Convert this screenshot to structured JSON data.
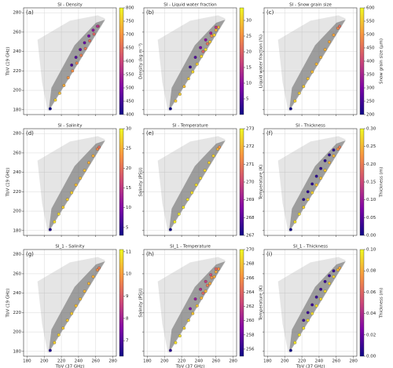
{
  "chart_data": [
    {
      "type": "scatter",
      "panel_label": "(a)",
      "title": "SI - Density",
      "ylabel": "TbV (19 GHz)",
      "colorbar_label": "Density (kg m⁻³)",
      "x": [
        207,
        213,
        218,
        223,
        228,
        233,
        238,
        243,
        248,
        253,
        258,
        263,
        232,
        237,
        242,
        247,
        252,
        257,
        262
      ],
      "values": [
        181,
        190,
        197,
        205,
        213,
        220,
        228,
        236,
        243,
        251,
        258,
        266,
        226,
        234,
        242,
        249,
        256,
        262,
        266
      ],
      "c": [
        400,
        760,
        740,
        720,
        700,
        690,
        680,
        670,
        660,
        650,
        640,
        620,
        450,
        460,
        470,
        480,
        490,
        520,
        560
      ],
      "xlim": [
        176,
        284
      ],
      "xticks": [
        180,
        200,
        220,
        240,
        260,
        280
      ],
      "ylim": [
        175,
        285
      ],
      "yticks": [
        180,
        200,
        220,
        240,
        260,
        280
      ],
      "clim": [
        400,
        800
      ],
      "cticks": [
        400,
        450,
        500,
        550,
        600,
        650,
        700,
        750,
        800
      ],
      "grid": true,
      "colormap": "plasma"
    },
    {
      "type": "scatter",
      "panel_label": "(b)",
      "title": "SI - Liquid water fraction",
      "colorbar_label": "Liquid water fraction (%)",
      "x": [
        207,
        213,
        218,
        223,
        228,
        233,
        238,
        243,
        248,
        253,
        258,
        263,
        230,
        236,
        242,
        248,
        254,
        260,
        245,
        250,
        255,
        260
      ],
      "values": [
        181,
        189,
        196,
        204,
        212,
        219,
        227,
        235,
        242,
        250,
        257,
        265,
        224,
        234,
        244,
        252,
        259,
        265,
        240,
        248,
        256,
        262
      ],
      "c": [
        0,
        30,
        30,
        29,
        30,
        31,
        30,
        31,
        32,
        30,
        31,
        28,
        3,
        5,
        8,
        10,
        12,
        15,
        20,
        22,
        25,
        28
      ],
      "xlim": [
        176,
        284
      ],
      "xticks": [
        180,
        200,
        220,
        240,
        260,
        280
      ],
      "ylim": [
        175,
        285
      ],
      "yticks": [
        180,
        200,
        220,
        240,
        260,
        280
      ],
      "clim": [
        0,
        34
      ],
      "cticks": [
        5,
        10,
        15,
        20,
        25,
        30
      ],
      "grid": true,
      "colormap": "plasma"
    },
    {
      "type": "scatter",
      "panel_label": "(c)",
      "title": "SI - Snow grain size",
      "colorbar_label": "Snow grain size (μm)",
      "x": [
        207,
        212,
        217,
        222,
        227,
        232,
        237,
        242,
        247,
        252,
        257,
        262,
        264
      ],
      "values": [
        181,
        189,
        197,
        204,
        212,
        219,
        227,
        234,
        242,
        250,
        257,
        264,
        266
      ],
      "c": [
        200,
        560,
        555,
        550,
        545,
        540,
        535,
        530,
        525,
        520,
        515,
        480,
        450
      ],
      "xlim": [
        176,
        284
      ],
      "xticks": [
        180,
        200,
        220,
        240,
        260,
        280
      ],
      "ylim": [
        175,
        285
      ],
      "yticks": [
        180,
        200,
        220,
        240,
        260,
        280
      ],
      "clim": [
        200,
        600
      ],
      "cticks": [
        200,
        250,
        300,
        350,
        400,
        450,
        500,
        550,
        600
      ],
      "grid": true,
      "colormap": "plasma"
    },
    {
      "type": "scatter",
      "panel_label": "(d)",
      "title": "SI - Salinity",
      "ylabel": "TbV (19 GHz)",
      "colorbar_label": "Salinity (PSU)",
      "x": [
        207,
        212,
        217,
        222,
        227,
        232,
        237,
        242,
        247,
        252,
        257,
        262,
        264
      ],
      "values": [
        181,
        189,
        197,
        204,
        212,
        219,
        227,
        234,
        242,
        250,
        257,
        264,
        266
      ],
      "c": [
        4,
        28,
        28,
        27,
        27,
        27,
        26,
        26,
        26,
        25,
        25,
        22,
        20
      ],
      "xlim": [
        176,
        284
      ],
      "xticks": [
        180,
        200,
        220,
        240,
        260,
        280
      ],
      "ylim": [
        175,
        285
      ],
      "yticks": [
        180,
        200,
        220,
        240,
        260,
        280
      ],
      "clim": [
        3,
        30
      ],
      "cticks": [
        5,
        10,
        15,
        20,
        25,
        30
      ],
      "grid": true,
      "colormap": "plasma"
    },
    {
      "type": "scatter",
      "panel_label": "(e)",
      "title": "SI - Temperature",
      "colorbar_label": "Temperature (K)",
      "x": [
        207,
        212,
        217,
        222,
        227,
        232,
        237,
        242,
        247,
        252,
        257,
        262,
        264
      ],
      "values": [
        181,
        189,
        197,
        204,
        212,
        219,
        227,
        234,
        242,
        250,
        257,
        264,
        266
      ],
      "c": [
        267,
        272.8,
        272.8,
        272.7,
        272.7,
        272.6,
        272.6,
        272.5,
        272.5,
        272.4,
        272.4,
        272,
        271.5
      ],
      "xlim": [
        176,
        284
      ],
      "xticks": [
        180,
        200,
        220,
        240,
        260,
        280
      ],
      "ylim": [
        175,
        285
      ],
      "yticks": [
        180,
        200,
        220,
        240,
        260,
        280
      ],
      "clim": [
        267,
        273
      ],
      "cticks": [
        267,
        268,
        269,
        270,
        271,
        272,
        273
      ],
      "grid": true,
      "colormap": "plasma"
    },
    {
      "type": "scatter",
      "panel_label": "(f)",
      "title": "SI - Thickness",
      "colorbar_label": "Thickness (m)",
      "x": [
        207,
        212,
        217,
        222,
        227,
        232,
        237,
        242,
        247,
        252,
        257,
        262,
        264,
        222,
        227,
        232,
        237,
        242,
        247,
        252,
        257
      ],
      "values": [
        181,
        189,
        197,
        204,
        212,
        219,
        227,
        234,
        242,
        250,
        257,
        264,
        266,
        212,
        220,
        228,
        236,
        244,
        252,
        258,
        263
      ],
      "c": [
        0,
        0.28,
        0.28,
        0.27,
        0.27,
        0.27,
        0.26,
        0.26,
        0.26,
        0.25,
        0.25,
        0.22,
        0.2,
        0.02,
        0.02,
        0.02,
        0.02,
        0.02,
        0.02,
        0.02,
        0.02
      ],
      "xlim": [
        176,
        284
      ],
      "xticks": [
        180,
        200,
        220,
        240,
        260,
        280
      ],
      "ylim": [
        175,
        285
      ],
      "yticks": [
        180,
        200,
        220,
        240,
        260,
        280
      ],
      "clim": [
        0,
        0.3
      ],
      "cticks": [
        {
          "value": 0,
          "label": "0.00"
        },
        0.05,
        {
          "value": 0.1,
          "label": "0.10"
        },
        0.15,
        {
          "value": 0.2,
          "label": "0.20"
        },
        0.25,
        {
          "value": 0.3,
          "label": "0.30"
        }
      ],
      "grid": true,
      "colormap": "plasma"
    },
    {
      "type": "scatter",
      "panel_label": "(g)",
      "title": "SI_1 - Salinity",
      "ylabel": "TbV (19 GHz)",
      "xlabel": "TbV (37 GHz)",
      "colorbar_label": "Salinity (PSU)",
      "x": [
        207,
        212,
        217,
        222,
        227,
        232,
        237,
        242,
        247,
        252,
        257,
        262,
        264
      ],
      "values": [
        181,
        189,
        197,
        204,
        212,
        219,
        227,
        234,
        242,
        250,
        257,
        264,
        266
      ],
      "c": [
        6.5,
        10.6,
        10.6,
        10.5,
        10.5,
        10.5,
        10.4,
        10.4,
        10.3,
        10.3,
        10.2,
        9.8,
        9.5
      ],
      "xlim": [
        176,
        284
      ],
      "xticks": [
        180,
        200,
        220,
        240,
        260,
        280
      ],
      "ylim": [
        175,
        285
      ],
      "yticks": [
        180,
        200,
        220,
        240,
        260,
        280
      ],
      "clim": [
        6.3,
        11.1
      ],
      "cticks": [
        7,
        8,
        9,
        10,
        11
      ],
      "grid": true,
      "colormap": "plasma"
    },
    {
      "type": "scatter",
      "panel_label": "(h)",
      "title": "SI_1 - Temperature",
      "xlabel": "TbV (37 GHz)",
      "colorbar_label": "Temperature (K)",
      "x": [
        207,
        213,
        218,
        223,
        228,
        233,
        238,
        243,
        248,
        253,
        258,
        263,
        230,
        236,
        242,
        248,
        254,
        260,
        245,
        250,
        255,
        260
      ],
      "values": [
        181,
        189,
        196,
        204,
        212,
        219,
        227,
        235,
        242,
        250,
        257,
        265,
        224,
        234,
        244,
        252,
        259,
        265,
        240,
        248,
        256,
        262
      ],
      "c": [
        256,
        269,
        269,
        268.5,
        268.5,
        268,
        268,
        267.5,
        267.5,
        267,
        267,
        266,
        259,
        260,
        261,
        262,
        263,
        264,
        264,
        265,
        266,
        267
      ],
      "xlim": [
        176,
        284
      ],
      "xticks": [
        180,
        200,
        220,
        240,
        260,
        280
      ],
      "ylim": [
        175,
        285
      ],
      "yticks": [
        180,
        200,
        220,
        240,
        260,
        280
      ],
      "clim": [
        255,
        270
      ],
      "cticks": [
        256,
        258,
        260,
        262,
        264,
        266,
        268,
        270
      ],
      "grid": true,
      "colormap": "plasma"
    },
    {
      "type": "scatter",
      "panel_label": "(i)",
      "title": "SI_1 - Thickness",
      "xlabel": "TbV (37 GHz)",
      "colorbar_label": "Thickness (m)",
      "x": [
        207,
        212,
        217,
        222,
        227,
        232,
        237,
        242,
        247,
        252,
        257,
        262,
        264,
        222,
        227,
        232,
        237,
        242,
        247,
        252,
        257
      ],
      "values": [
        181,
        189,
        197,
        204,
        212,
        219,
        227,
        234,
        242,
        250,
        257,
        264,
        266,
        212,
        220,
        228,
        236,
        244,
        252,
        258,
        263
      ],
      "c": [
        0,
        0.095,
        0.095,
        0.094,
        0.094,
        0.093,
        0.093,
        0.092,
        0.092,
        0.091,
        0.09,
        0.085,
        0.08,
        0.01,
        0.01,
        0.01,
        0.01,
        0.01,
        0.01,
        0.01,
        0.01
      ],
      "xlim": [
        176,
        284
      ],
      "xticks": [
        180,
        200,
        220,
        240,
        260,
        280
      ],
      "ylim": [
        175,
        285
      ],
      "yticks": [
        180,
        200,
        220,
        240,
        260,
        280
      ],
      "clim": [
        0,
        0.1
      ],
      "cticks": [
        {
          "value": 0,
          "label": "0.00"
        },
        0.02,
        0.04,
        0.06,
        0.08,
        {
          "value": 0.1,
          "label": "0.10"
        }
      ],
      "grid": true,
      "colormap": "plasma"
    }
  ]
}
